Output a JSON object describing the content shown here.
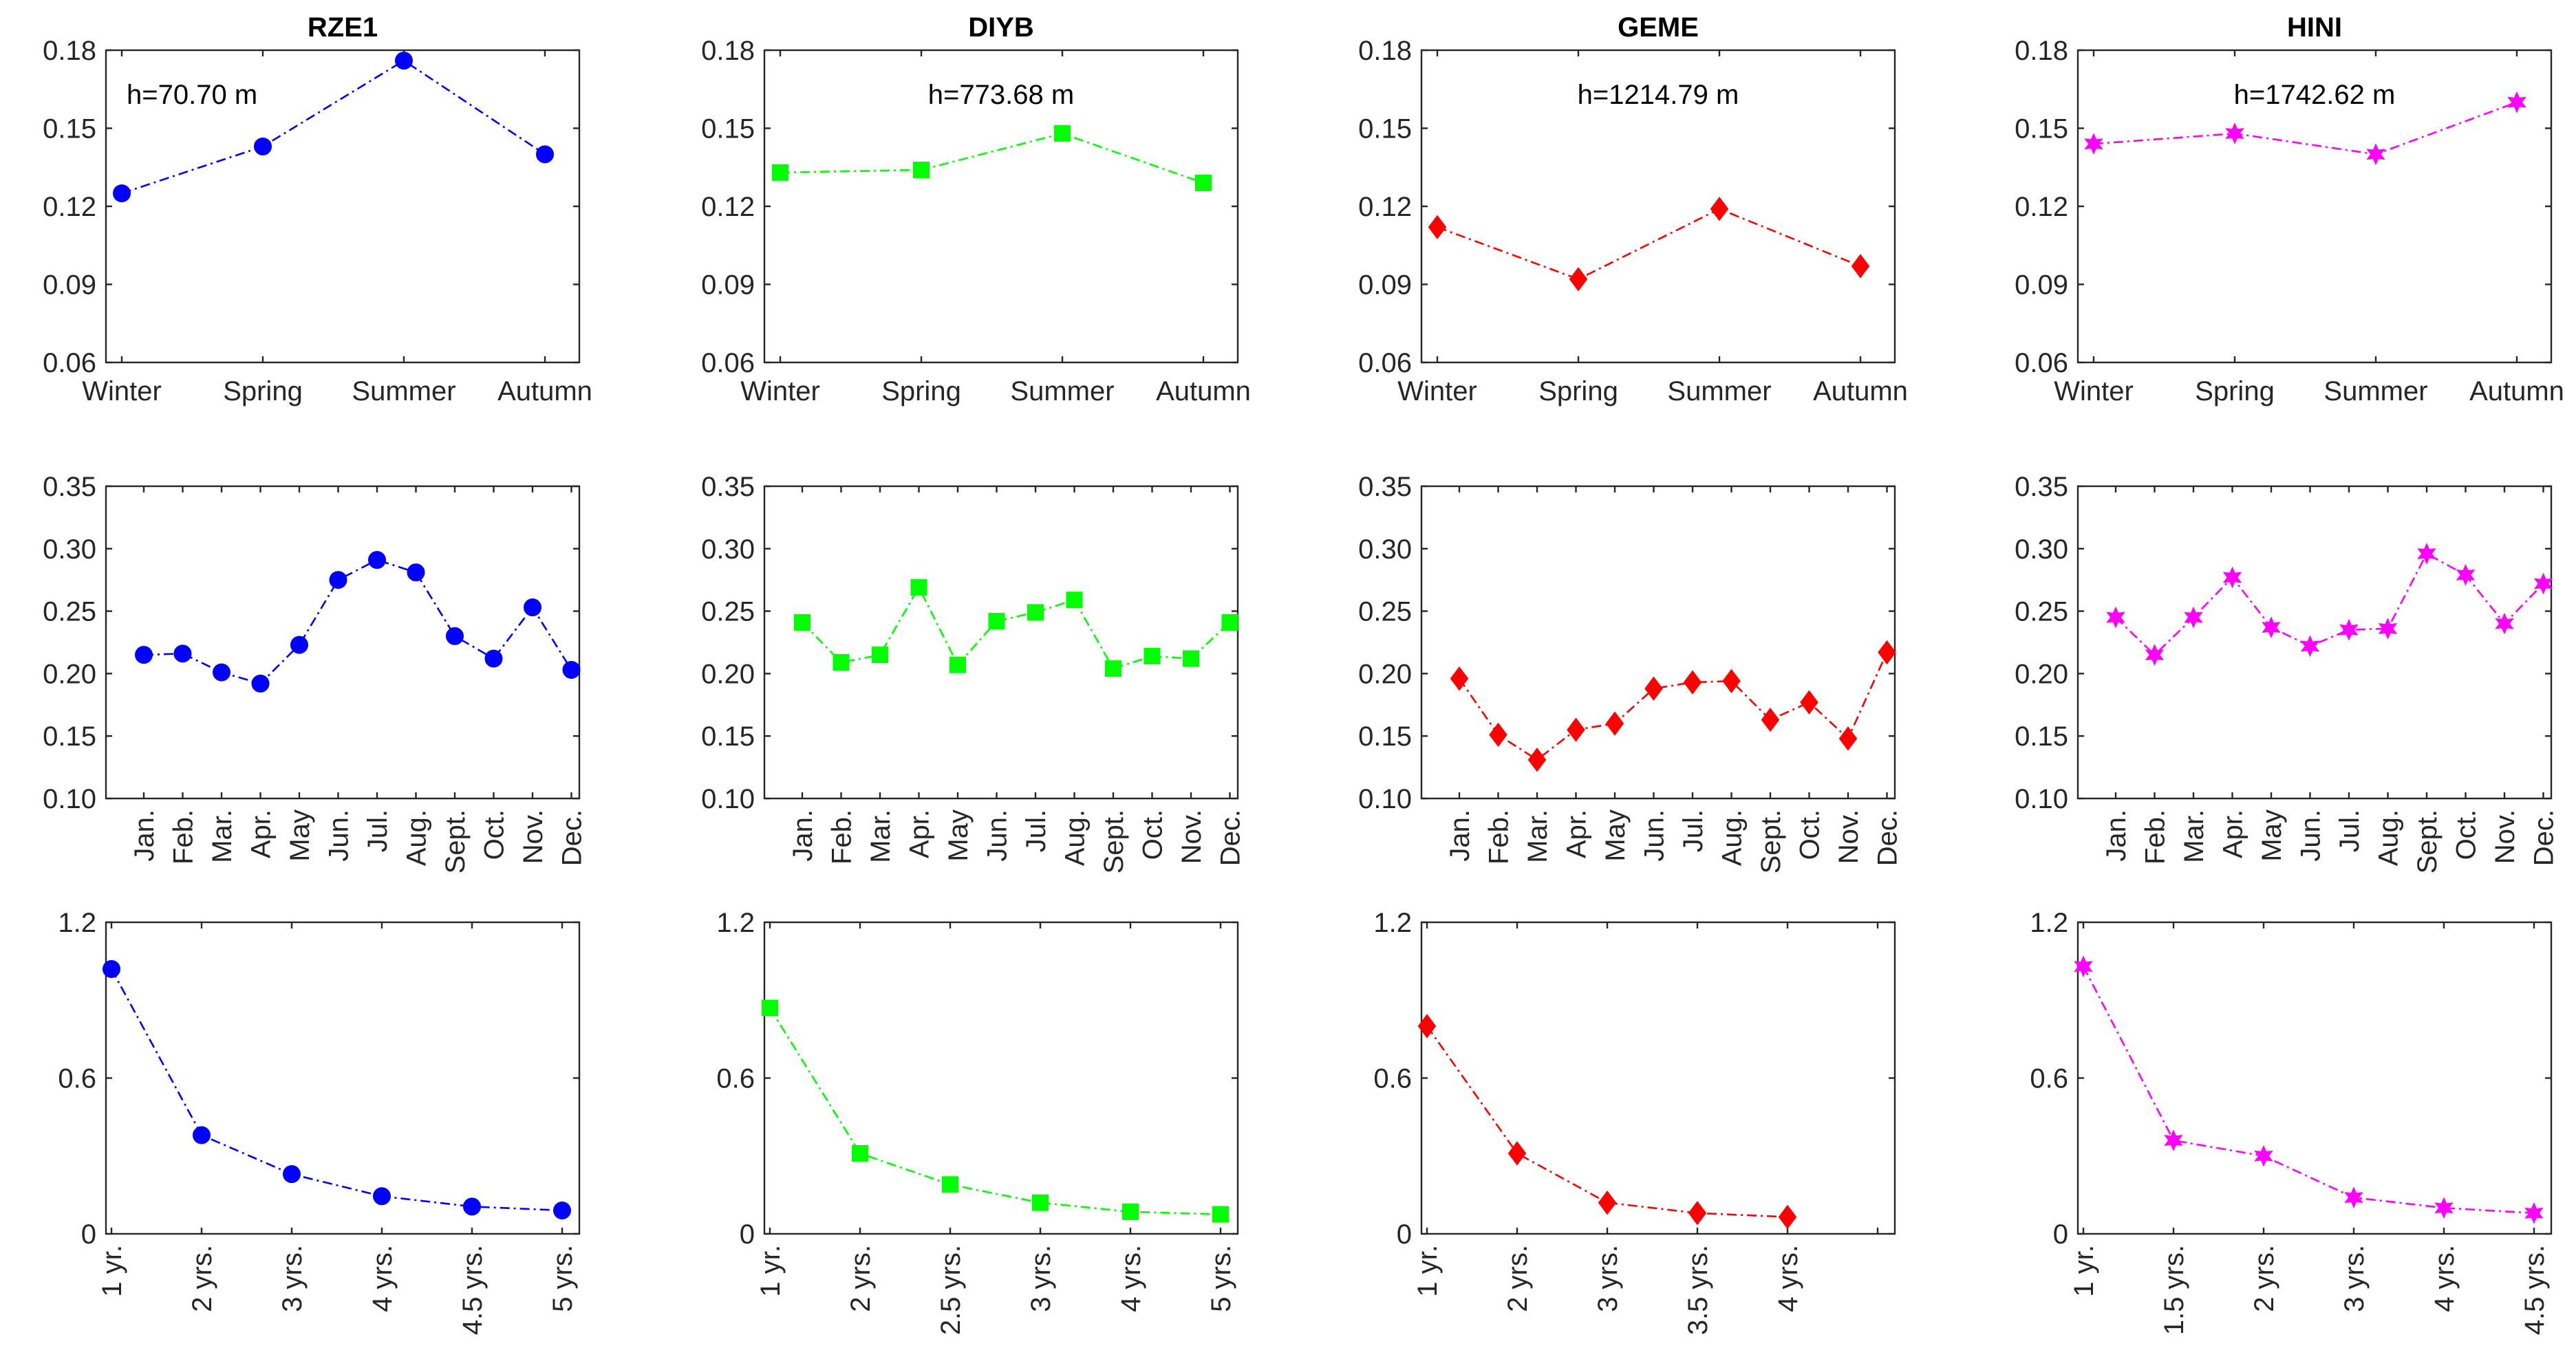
{
  "colors": {
    "RZE1": "#0000ff",
    "DIYB": "#00ff00",
    "GEME": "#ff0000",
    "HINI": "#ff00ff"
  },
  "chart_data": [
    {
      "id": "RZE1-seasonal",
      "type": "line",
      "title": "RZE1",
      "annotation": "h=70.70 m",
      "marker": "circle",
      "color": "#0000ff",
      "categories": [
        "Winter",
        "Spring",
        "Summer",
        "Autumn"
      ],
      "values": [
        0.125,
        0.143,
        0.176,
        0.14
      ],
      "ylim": [
        0.06,
        0.18
      ],
      "yticks": [
        "0.06",
        "0.09",
        "0.12",
        "0.15",
        "0.18"
      ],
      "xlabel": "",
      "ylabel": ""
    },
    {
      "id": "DIYB-seasonal",
      "type": "line",
      "title": "DIYB",
      "annotation": "h=773.68 m",
      "marker": "square",
      "color": "#00ff00",
      "categories": [
        "Winter",
        "Spring",
        "Summer",
        "Autumn"
      ],
      "values": [
        0.133,
        0.134,
        0.148,
        0.129
      ],
      "ylim": [
        0.06,
        0.18
      ],
      "yticks": [
        "0.06",
        "0.09",
        "0.12",
        "0.15",
        "0.18"
      ],
      "xlabel": "",
      "ylabel": ""
    },
    {
      "id": "GEME-seasonal",
      "type": "line",
      "title": "GEME",
      "annotation": "h=1214.79 m",
      "marker": "diamond",
      "color": "#ff0000",
      "categories": [
        "Winter",
        "Spring",
        "Summer",
        "Autumn"
      ],
      "values": [
        0.112,
        0.092,
        0.119,
        0.097
      ],
      "ylim": [
        0.06,
        0.18
      ],
      "yticks": [
        "0.06",
        "0.09",
        "0.12",
        "0.15",
        "0.18"
      ],
      "xlabel": "",
      "ylabel": ""
    },
    {
      "id": "HINI-seasonal",
      "type": "line",
      "title": "HINI",
      "annotation": "h=1742.62 m",
      "marker": "hexagram",
      "color": "#ff00ff",
      "categories": [
        "Winter",
        "Spring",
        "Summer",
        "Autumn"
      ],
      "values": [
        0.144,
        0.148,
        0.14,
        0.16
      ],
      "ylim": [
        0.06,
        0.18
      ],
      "yticks": [
        "0.06",
        "0.09",
        "0.12",
        "0.15",
        "0.18"
      ],
      "xlabel": "",
      "ylabel": ""
    },
    {
      "id": "RZE1-monthly",
      "type": "line",
      "title": "",
      "annotation": "",
      "marker": "circle",
      "color": "#0000ff",
      "categories": [
        "Jan.",
        "Feb.",
        "Mar.",
        "Apr.",
        "May",
        "Jun.",
        "Jul.",
        "Aug.",
        "Sept.",
        "Oct.",
        "Nov.",
        "Dec."
      ],
      "values": [
        0.215,
        0.216,
        0.201,
        0.192,
        0.223,
        0.275,
        0.291,
        0.281,
        0.23,
        0.212,
        0.253,
        0.203
      ],
      "ylim": [
        0.1,
        0.35
      ],
      "yticks": [
        "0.10",
        "0.15",
        "0.20",
        "0.25",
        "0.30",
        "0.35"
      ],
      "xlabel": "",
      "ylabel": ""
    },
    {
      "id": "DIYB-monthly",
      "type": "line",
      "title": "",
      "annotation": "",
      "marker": "square",
      "color": "#00ff00",
      "categories": [
        "Jan.",
        "Feb.",
        "Mar.",
        "Apr.",
        "May",
        "Jun.",
        "Jul.",
        "Aug.",
        "Sept.",
        "Oct.",
        "Nov.",
        "Dec."
      ],
      "values": [
        0.241,
        0.209,
        0.215,
        0.269,
        0.207,
        0.242,
        0.249,
        0.259,
        0.204,
        0.214,
        0.212,
        0.241
      ],
      "ylim": [
        0.1,
        0.35
      ],
      "yticks": [
        "0.10",
        "0.15",
        "0.20",
        "0.25",
        "0.30",
        "0.35"
      ],
      "xlabel": "",
      "ylabel": ""
    },
    {
      "id": "GEME-monthly",
      "type": "line",
      "title": "",
      "annotation": "",
      "marker": "diamond",
      "color": "#ff0000",
      "categories": [
        "Jan.",
        "Feb.",
        "Mar.",
        "Apr.",
        "May",
        "Jun.",
        "Jul.",
        "Aug.",
        "Sept.",
        "Oct.",
        "Nov.",
        "Dec."
      ],
      "values": [
        0.196,
        0.151,
        0.131,
        0.155,
        0.16,
        0.188,
        0.193,
        0.194,
        0.163,
        0.177,
        0.148,
        0.217
      ],
      "ylim": [
        0.1,
        0.35
      ],
      "yticks": [
        "0.10",
        "0.15",
        "0.20",
        "0.25",
        "0.30",
        "0.35"
      ],
      "xlabel": "",
      "ylabel": ""
    },
    {
      "id": "HINI-monthly",
      "type": "line",
      "title": "",
      "annotation": "",
      "marker": "hexagram",
      "color": "#ff00ff",
      "categories": [
        "Jan.",
        "Feb.",
        "Mar.",
        "Apr.",
        "May",
        "Jun.",
        "Jul.",
        "Aug.",
        "Sept.",
        "Oct.",
        "Nov.",
        "Dec."
      ],
      "values": [
        0.245,
        0.215,
        0.245,
        0.277,
        0.237,
        0.222,
        0.235,
        0.236,
        0.296,
        0.279,
        0.24,
        0.272
      ],
      "ylim": [
        0.1,
        0.35
      ],
      "yticks": [
        "0.10",
        "0.15",
        "0.20",
        "0.25",
        "0.30",
        "0.35"
      ],
      "xlabel": "",
      "ylabel": ""
    },
    {
      "id": "RZE1-period",
      "type": "line",
      "title": "",
      "annotation": "",
      "marker": "circle",
      "color": "#0000ff",
      "categories": [
        "1 yr.",
        "2 yrs.",
        "3 yrs.",
        "4 yrs.",
        "4.5 yrs.",
        "5 yrs."
      ],
      "values": [
        1.02,
        0.38,
        0.23,
        0.145,
        0.105,
        0.09
      ],
      "ylim": [
        0,
        1.2
      ],
      "yticks": [
        "0",
        "0.6",
        "1.2"
      ],
      "xlabel": "",
      "ylabel": ""
    },
    {
      "id": "DIYB-period",
      "type": "line",
      "title": "",
      "annotation": "",
      "marker": "square",
      "color": "#00ff00",
      "categories": [
        "1 yr.",
        "2 yrs.",
        "2.5 yrs.",
        "3 yrs.",
        "4 yrs.",
        "5 yrs."
      ],
      "values": [
        0.87,
        0.31,
        0.19,
        0.12,
        0.085,
        0.075
      ],
      "ylim": [
        0,
        1.2
      ],
      "yticks": [
        "0",
        "0.6",
        "1.2"
      ],
      "xlabel": "",
      "ylabel": ""
    },
    {
      "id": "GEME-period",
      "type": "line",
      "title": "",
      "annotation": "",
      "marker": "diamond",
      "color": "#ff0000",
      "categories": [
        "1 yr.",
        "2 yrs.",
        "3 yrs.",
        "3.5 yrs.",
        "4 yrs.",
        ""
      ],
      "values": [
        0.8,
        0.31,
        0.12,
        0.08,
        0.065,
        null
      ],
      "ylim": [
        0,
        1.2
      ],
      "yticks": [
        "0",
        "0.6",
        "1.2"
      ],
      "xlabel": "",
      "ylabel": ""
    },
    {
      "id": "HINI-period",
      "type": "line",
      "title": "",
      "annotation": "",
      "marker": "hexagram",
      "color": "#ff00ff",
      "categories": [
        "1 yr.",
        "1.5 yrs.",
        "2 yrs.",
        "3 yrs.",
        "4 yrs.",
        "4.5 yrs."
      ],
      "values": [
        1.03,
        0.36,
        0.3,
        0.14,
        0.1,
        0.08
      ],
      "ylim": [
        0,
        1.2
      ],
      "yticks": [
        "0",
        "0.6",
        "1.2"
      ],
      "xlabel": "",
      "ylabel": ""
    }
  ]
}
